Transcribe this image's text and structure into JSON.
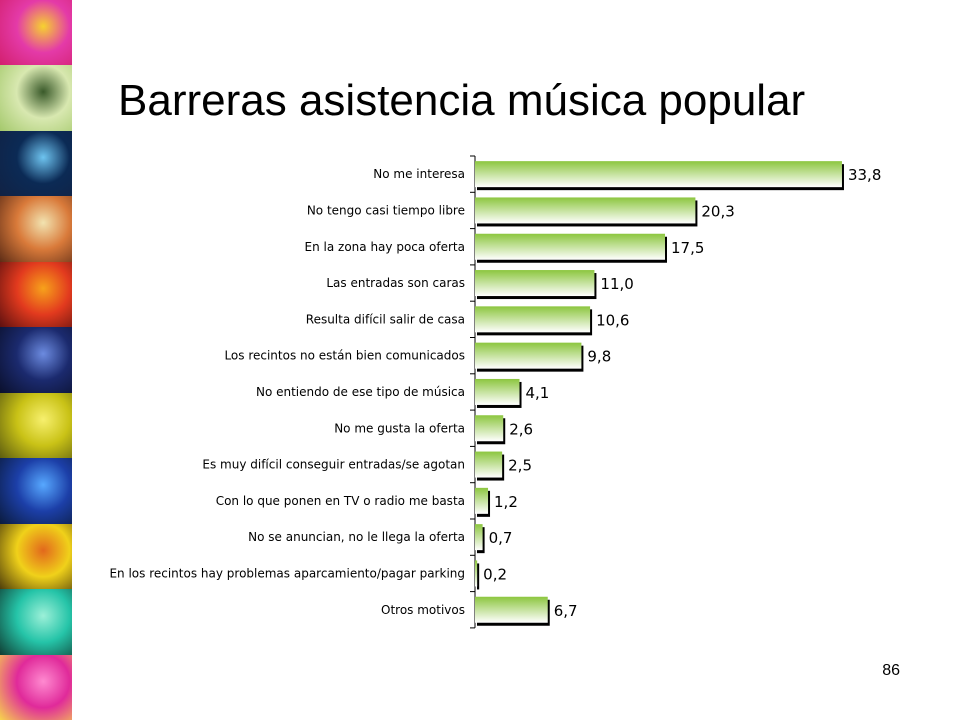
{
  "slide": {
    "title": "Barreras asistencia música popular",
    "page_number": "86"
  },
  "colors": {
    "bar_gradient_start": "#8cc63f",
    "bar_gradient_end": "#ffffff",
    "bar_shadow": "#000000",
    "axis": "#000000"
  },
  "photo_strip": {
    "tiles": [
      {
        "name": "concert-lights-photo",
        "colors": [
          "#e43aa8",
          "#f6d22f",
          "#d21f6c"
        ]
      },
      {
        "name": "bicycle-photo",
        "colors": [
          "#d8e8b0",
          "#3a5a2a",
          "#a3c86a"
        ]
      },
      {
        "name": "stage-lights-photo",
        "colors": [
          "#0b2a55",
          "#6ec4f0",
          "#112244"
        ]
      },
      {
        "name": "crowd-photo",
        "colors": [
          "#d97a3a",
          "#f2e3b0",
          "#5a2a15"
        ]
      },
      {
        "name": "cameraman-photo",
        "colors": [
          "#e23a1e",
          "#f7a21b",
          "#5a0f0f"
        ]
      },
      {
        "name": "audience-silhouette-photo",
        "colors": [
          "#1b2a6e",
          "#6c8be0",
          "#0a0f2a"
        ]
      },
      {
        "name": "microphone-photo",
        "colors": [
          "#c9c216",
          "#f7f06e",
          "#5a5a10"
        ]
      },
      {
        "name": "performer-photo",
        "colors": [
          "#1c3fa8",
          "#57a8ff",
          "#0a1a3a"
        ]
      },
      {
        "name": "guitarist-photo",
        "colors": [
          "#f0d11a",
          "#e2681c",
          "#4a3a0a"
        ]
      },
      {
        "name": "video-camera-photo",
        "colors": [
          "#25c4a8",
          "#9cf0d8",
          "#0f3a30"
        ]
      },
      {
        "name": "performer-pink-photo",
        "colors": [
          "#e02a9a",
          "#ff8ad0",
          "#f7d94a"
        ]
      }
    ]
  },
  "chart_data": {
    "type": "bar",
    "orientation": "horizontal",
    "categories": [
      "No me interesa",
      "No tengo casi tiempo libre",
      "En la zona hay poca oferta",
      "Las entradas son caras",
      "Resulta difícil salir de casa",
      "Los recintos no están bien comunicados",
      "No entiendo de ese tipo de música",
      "No me gusta la oferta",
      "Es muy difícil conseguir entradas/se agotan",
      "Con lo que ponen en TV o radio me basta",
      "No se anuncian, no le llega la oferta",
      "En los recintos hay problemas aparcamiento/pagar parking",
      "Otros motivos"
    ],
    "values": [
      33.8,
      20.3,
      17.5,
      11.0,
      10.6,
      9.8,
      4.1,
      2.6,
      2.5,
      1.2,
      0.7,
      0.2,
      6.7
    ],
    "value_labels": [
      "33,8",
      "20,3",
      "17,5",
      "11,0",
      "10,6",
      "9,8",
      "4,1",
      "2,6",
      "2,5",
      "1,2",
      "0,7",
      "0,2",
      "6,7"
    ],
    "xlim": [
      0,
      35
    ],
    "grid": false,
    "legend": "none"
  }
}
